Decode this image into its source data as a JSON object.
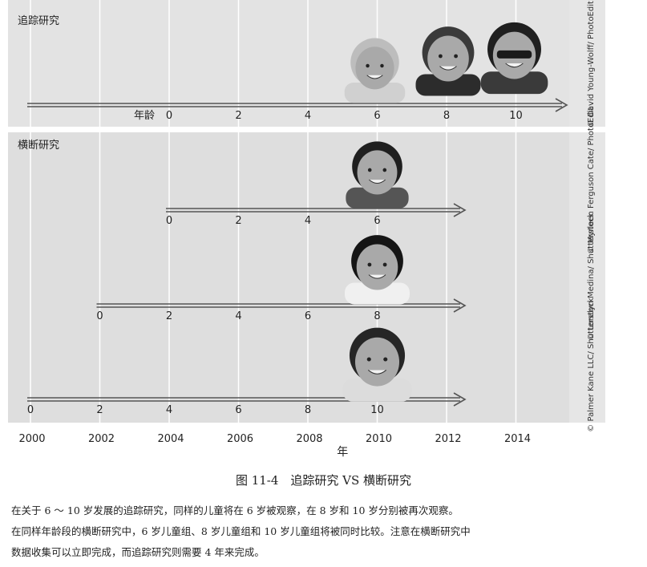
{
  "diagram": {
    "longitudinal_label": "追踪研究",
    "cross_sectional_label": "横断研究",
    "age_label": "年龄",
    "year_axis_label": "年",
    "years": [
      "2000",
      "2002",
      "2004",
      "2006",
      "2008",
      "2010",
      "2012",
      "2014"
    ],
    "longitudinal_ages": [
      "0",
      "2",
      "4",
      "6",
      "8",
      "10"
    ],
    "cross_rows": [
      {
        "ages": [
          "0",
          "2",
          "4",
          "6"
        ],
        "photo_credit": "© Myrleen Ferguson Cate/ PhotoEdit"
      },
      {
        "ages": [
          "0",
          "2",
          "4",
          "6",
          "8"
        ],
        "photo_credit": "© Lorelyn Medina/ Shutterstock"
      },
      {
        "ages": [
          "0",
          "2",
          "4",
          "6",
          "8",
          "10"
        ],
        "photo_credit": "© Palmer Kane LLC/ Shutterstock"
      }
    ],
    "longitudinal_credit": "© David Young-Wolff/ PhotoEdit"
  },
  "caption": {
    "title": "图 11-4　追踪研究 VS 横断研究",
    "lines": [
      "在关于 6 ～ 10 岁发展的追踪研究，同样的儿童将在 6 岁被观察，在 8 岁和 10 岁分别被再次观察。",
      "在同样年龄段的横断研究中，6 岁儿童组、8 岁儿童组和 10 岁儿童组将被同时比较。注意在横断研究中",
      "数据收集可以立即完成，而追踪研究则需要 4 年来完成。"
    ]
  }
}
